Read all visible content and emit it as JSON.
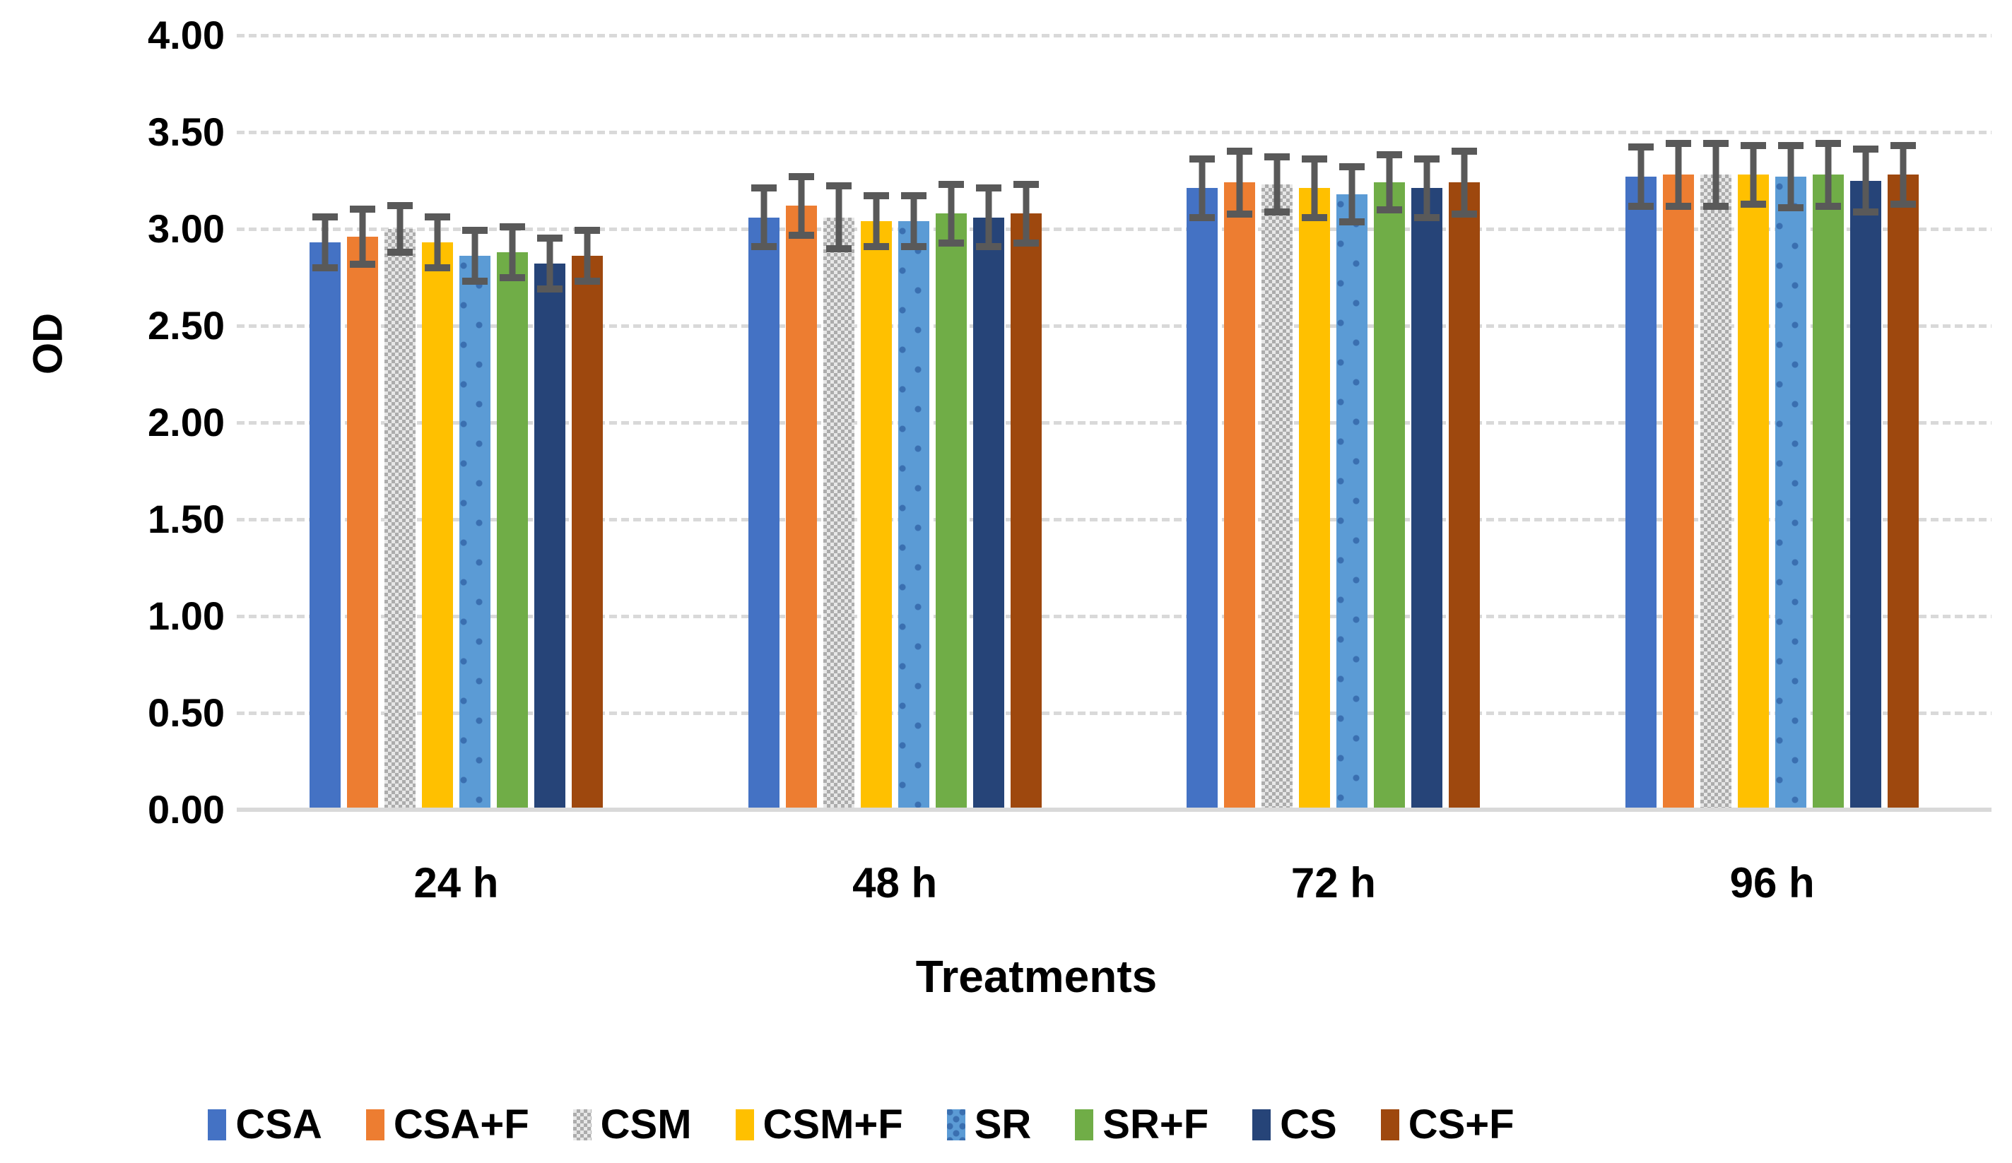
{
  "chart_data": {
    "type": "bar",
    "title": "",
    "xlabel": "Treatments",
    "ylabel": "OD",
    "ylim": [
      0,
      4
    ],
    "ytick_step": 0.5,
    "ytick_labels": [
      "4.00",
      "3.50",
      "3.00",
      "2.50",
      "2.00",
      "1.50",
      "1.00",
      "0.50",
      "0.00"
    ],
    "grid": "horizontal-dotted",
    "gridline_color": "#D9D9D9",
    "error_bar_color": "#595959",
    "legend_position": "bottom",
    "categories": [
      "24 h",
      "48 h",
      "72 h",
      "96 h"
    ],
    "series": [
      {
        "name": "CSA",
        "color": "#4472C4",
        "pattern": "solid",
        "values": [
          2.93,
          3.06,
          3.21,
          3.27
        ],
        "errors": [
          0.15,
          0.17,
          0.17,
          0.17
        ]
      },
      {
        "name": "CSA+F",
        "color": "#ED7D31",
        "pattern": "solid",
        "values": [
          2.96,
          3.12,
          3.24,
          3.28
        ],
        "errors": [
          0.16,
          0.17,
          0.18,
          0.18
        ]
      },
      {
        "name": "CSM",
        "color": "#A5A5A5",
        "pattern": "checker",
        "values": [
          3.0,
          3.06,
          3.23,
          3.28
        ],
        "errors": [
          0.14,
          0.18,
          0.16,
          0.18
        ]
      },
      {
        "name": "CSM+F",
        "color": "#FFC000",
        "pattern": "solid",
        "values": [
          2.93,
          3.04,
          3.21,
          3.28
        ],
        "errors": [
          0.15,
          0.15,
          0.17,
          0.17
        ]
      },
      {
        "name": "SR",
        "color": "#5B9BD5",
        "pattern": "dots",
        "values": [
          2.86,
          3.04,
          3.18,
          3.27
        ],
        "errors": [
          0.15,
          0.15,
          0.16,
          0.18
        ]
      },
      {
        "name": "SR+F",
        "color": "#70AD47",
        "pattern": "solid",
        "values": [
          2.88,
          3.08,
          3.24,
          3.28
        ],
        "errors": [
          0.15,
          0.17,
          0.16,
          0.18
        ]
      },
      {
        "name": "CS",
        "color": "#264478",
        "pattern": "solid",
        "values": [
          2.82,
          3.06,
          3.21,
          3.25
        ],
        "errors": [
          0.15,
          0.17,
          0.17,
          0.18
        ]
      },
      {
        "name": "CS+F",
        "color": "#9E480E",
        "pattern": "solid",
        "values": [
          2.86,
          3.08,
          3.24,
          3.28
        ],
        "errors": [
          0.15,
          0.17,
          0.18,
          0.17
        ]
      }
    ]
  }
}
